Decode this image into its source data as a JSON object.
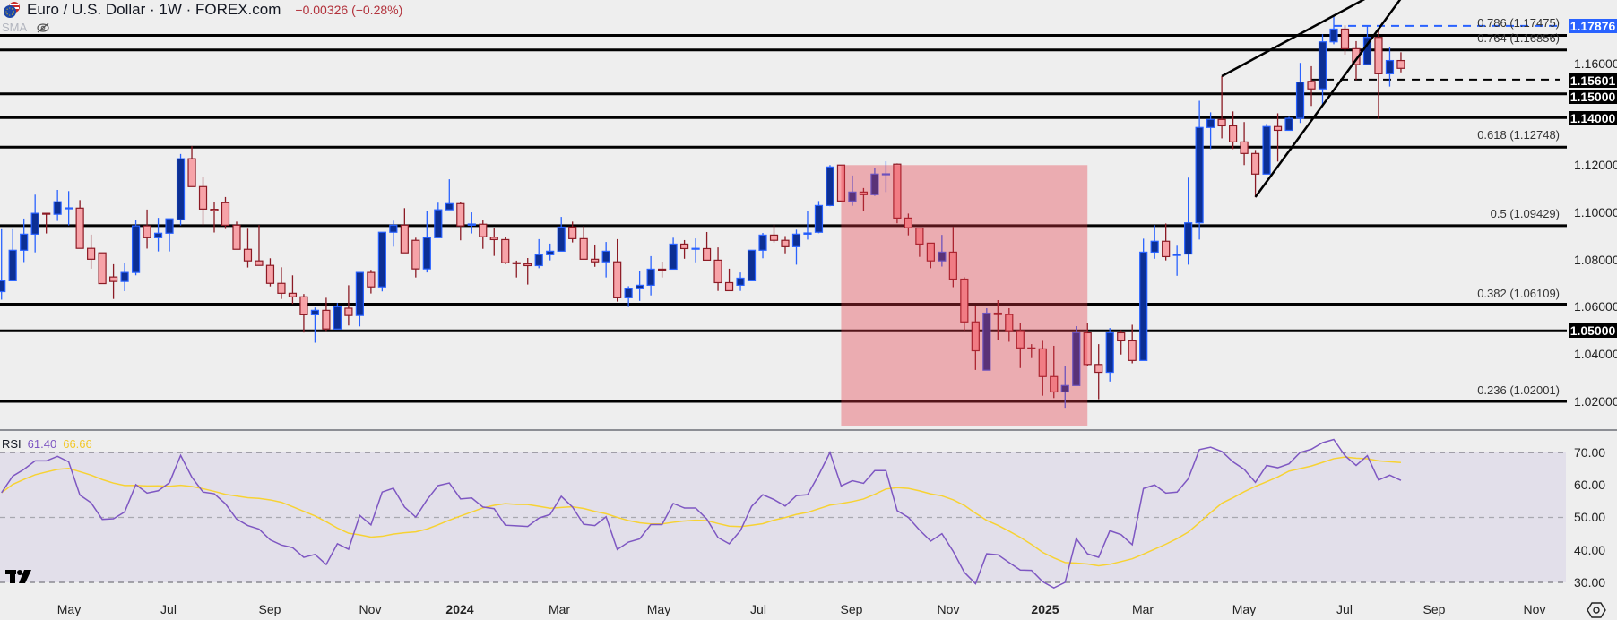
{
  "header": {
    "title": "Euro / U.S. Dollar · 1W · FOREX.com",
    "change": "−0.00326 (−0.28%)",
    "indicator_label": "SMA",
    "flag_icon": "eu-us-flag-icon",
    "visibility_icon": "eye-slash-icon"
  },
  "rsi_header": {
    "label": "RSI",
    "value": "61.40",
    "ma_value": "66.66"
  },
  "colors": {
    "bull_fill": "#0c2f94",
    "bull_border": "#2962ff",
    "bear_fill": "#f7a3a8",
    "bear_border": "#8b1a24",
    "rsi_line": "#7e57c2",
    "rsi_ma": "#f7d233",
    "zone_fill": "rgba(230,55,70,0.36)",
    "accent_blue": "#2962ff"
  },
  "price_axis": {
    "ticks": [
      "1.16000",
      "1.12000",
      "1.10000",
      "1.08000",
      "1.06000",
      "1.04000",
      "1.02000"
    ],
    "badges": {
      "current_high": "1.17876",
      "dashed": "1.15601",
      "l1150": "1.15000",
      "l1140": "1.14000",
      "l1050": "1.05000"
    }
  },
  "fib_labels": {
    "f786": "0.786 (1.17475)",
    "f764": "0.764 (1.16856)",
    "f618": "0.618 (1.12748)",
    "f500": "0.5 (1.09429)",
    "f382": "0.382 (1.06109)",
    "f236": "0.236 (1.02001)"
  },
  "time_axis": [
    "May",
    "Jul",
    "Sep",
    "Nov",
    "2024",
    "Mar",
    "May",
    "Jul",
    "Sep",
    "Nov",
    "2025",
    "Mar",
    "May",
    "Jul",
    "Sep",
    "Nov"
  ],
  "rsi_axis": [
    "70.00",
    "60.00",
    "50.00",
    "40.00",
    "30.00"
  ],
  "chart_data": {
    "type": "candlestick",
    "title": "Euro / U.S. Dollar · 1W · FOREX.com",
    "interval": "1W",
    "ylim": [
      1.005,
      1.19
    ],
    "candles_ohlc": [
      [
        1.0664,
        1.0928,
        1.063,
        1.071
      ],
      [
        1.071,
        1.0928,
        1.071,
        1.0839
      ],
      [
        1.0839,
        1.0973,
        1.0789,
        1.0907
      ],
      [
        1.0907,
        1.1074,
        1.083,
        1.0995
      ],
      [
        1.0995,
        1.0995,
        1.091,
        1.0994
      ],
      [
        1.0991,
        1.1094,
        1.0963,
        1.1044
      ],
      [
        1.1017,
        1.1089,
        1.0944,
        1.1018
      ],
      [
        1.1017,
        1.1051,
        1.0847,
        1.0847
      ],
      [
        1.0847,
        1.0905,
        1.0761,
        1.0801
      ],
      [
        1.0828,
        1.0828,
        1.0698,
        1.0698
      ],
      [
        1.0726,
        1.078,
        1.0633,
        1.0707
      ],
      [
        1.0707,
        1.0786,
        1.0666,
        1.0745
      ],
      [
        1.0745,
        1.0968,
        1.0733,
        1.0942
      ],
      [
        1.0942,
        1.1011,
        1.0846,
        1.0892
      ],
      [
        1.0892,
        1.0976,
        1.0834,
        1.0911
      ],
      [
        1.0911,
        1.0972,
        1.0834,
        1.0972
      ],
      [
        1.0968,
        1.1246,
        1.0944,
        1.1226
      ],
      [
        1.1226,
        1.1279,
        1.1108,
        1.1108
      ],
      [
        1.1108,
        1.115,
        1.0944,
        1.1013
      ],
      [
        1.1012,
        1.1044,
        1.0914,
        1.1006
      ],
      [
        1.104,
        1.1064,
        1.0929,
        1.0945
      ],
      [
        1.0945,
        1.096,
        1.0843,
        1.0843
      ],
      [
        1.0843,
        1.093,
        1.0766,
        1.0794
      ],
      [
        1.0794,
        1.0945,
        1.0775,
        1.0775
      ],
      [
        1.0775,
        1.0805,
        1.0686,
        1.0699
      ],
      [
        1.0699,
        1.0767,
        1.0633,
        1.0657
      ],
      [
        1.0657,
        1.0733,
        1.0612,
        1.0642
      ],
      [
        1.0642,
        1.0654,
        1.0491,
        1.0566
      ],
      [
        1.0566,
        1.0597,
        1.0448,
        1.0585
      ],
      [
        1.0585,
        1.0638,
        1.0498,
        1.0506
      ],
      [
        1.0506,
        1.0616,
        1.0506,
        1.06
      ],
      [
        1.0594,
        1.0691,
        1.0521,
        1.0563
      ],
      [
        1.0563,
        1.0745,
        1.0517,
        1.0745
      ],
      [
        1.0745,
        1.0756,
        1.0656,
        1.0684
      ],
      [
        1.0684,
        1.0915,
        1.0665,
        1.0915
      ],
      [
        1.0915,
        1.0964,
        1.0854,
        1.0945
      ],
      [
        1.0945,
        1.1017,
        1.0828,
        1.0828
      ],
      [
        1.0881,
        1.0892,
        1.0724,
        1.076
      ],
      [
        1.076,
        1.1006,
        1.0745,
        1.0892
      ],
      [
        1.0892,
        1.104,
        1.0892,
        1.101
      ],
      [
        1.101,
        1.1139,
        1.101,
        1.1036
      ],
      [
        1.1036,
        1.1044,
        1.0881,
        1.0942
      ],
      [
        1.0945,
        1.0999,
        1.091,
        1.095
      ],
      [
        1.0949,
        1.0965,
        1.0845,
        1.0896
      ],
      [
        1.0894,
        1.0931,
        1.0815,
        1.0884
      ],
      [
        1.0884,
        1.0897,
        1.0781,
        1.0786
      ],
      [
        1.0786,
        1.0795,
        1.0724,
        1.0785
      ],
      [
        1.0782,
        1.0806,
        1.0694,
        1.0774
      ],
      [
        1.0774,
        1.0886,
        1.0763,
        1.082
      ],
      [
        1.082,
        1.0867,
        1.0796,
        1.0835
      ],
      [
        1.0835,
        1.098,
        1.0835,
        1.0937
      ],
      [
        1.0937,
        1.096,
        1.0872,
        1.0888
      ],
      [
        1.0888,
        1.0941,
        1.0801,
        1.0801
      ],
      [
        1.0801,
        1.0863,
        1.0769,
        1.079
      ],
      [
        1.079,
        1.0874,
        1.0724,
        1.0835
      ],
      [
        1.079,
        1.0886,
        1.0622,
        1.0638
      ],
      [
        1.0638,
        1.0687,
        1.0599,
        1.0676
      ],
      [
        1.0676,
        1.0753,
        1.0625,
        1.0691
      ],
      [
        1.0691,
        1.0814,
        1.0648,
        1.0759
      ],
      [
        1.0759,
        1.0791,
        1.0724,
        1.0758
      ],
      [
        1.0759,
        1.0892,
        1.0759,
        1.0865
      ],
      [
        1.0865,
        1.0882,
        1.0803,
        1.0846
      ],
      [
        1.0846,
        1.0889,
        1.0788,
        1.0847
      ],
      [
        1.0846,
        1.0916,
        1.0797,
        1.0797
      ],
      [
        1.0797,
        1.0851,
        1.0667,
        1.0702
      ],
      [
        1.0702,
        1.0761,
        1.0668,
        1.0668
      ],
      [
        1.0691,
        1.0745,
        1.0667,
        1.0721
      ],
      [
        1.071,
        1.0839,
        1.071,
        1.0839
      ],
      [
        1.0839,
        1.0912,
        1.0805,
        1.0903
      ],
      [
        1.0903,
        1.0947,
        1.0872,
        1.0881
      ],
      [
        1.0881,
        1.0899,
        1.0826,
        1.0854
      ],
      [
        1.0854,
        1.0926,
        1.0778,
        1.0907
      ],
      [
        1.0907,
        1.1006,
        1.0884,
        1.0912
      ],
      [
        1.0915,
        1.1047,
        1.0911,
        1.1028
      ],
      [
        1.1028,
        1.1199,
        1.1025,
        1.1191
      ],
      [
        1.1199,
        1.1199,
        1.1047,
        1.1047
      ],
      [
        1.1047,
        1.1155,
        1.1027,
        1.1085
      ],
      [
        1.1085,
        1.1102,
        1.1004,
        1.1074
      ],
      [
        1.1074,
        1.1187,
        1.1069,
        1.1161
      ],
      [
        1.1161,
        1.1215,
        1.1085,
        1.1162
      ],
      [
        1.1203,
        1.1206,
        1.0953,
        1.0975
      ],
      [
        1.0975,
        1.0994,
        1.0902,
        1.0934
      ],
      [
        1.0933,
        1.0933,
        1.0811,
        1.0865
      ],
      [
        1.0869,
        1.0869,
        1.0763,
        1.0794
      ],
      [
        1.0794,
        1.0904,
        1.077,
        1.0831
      ],
      [
        1.0831,
        1.0937,
        1.0683,
        1.0717
      ],
      [
        1.0717,
        1.0725,
        1.05,
        1.0536
      ],
      [
        1.0536,
        1.0605,
        1.0333,
        1.0414
      ],
      [
        1.0332,
        1.0594,
        1.0332,
        1.0573
      ],
      [
        1.0573,
        1.0628,
        1.046,
        1.0567
      ],
      [
        1.0567,
        1.0594,
        1.0452,
        1.0499
      ],
      [
        1.0499,
        1.0533,
        1.0341,
        1.0426
      ],
      [
        1.0426,
        1.0442,
        1.0383,
        1.0425
      ],
      [
        1.0422,
        1.0456,
        1.0224,
        1.0305
      ],
      [
        1.0305,
        1.0435,
        1.0214,
        1.024
      ],
      [
        1.024,
        1.035,
        1.0173,
        1.0267
      ],
      [
        1.0267,
        1.0518,
        1.0267,
        1.049
      ],
      [
        1.049,
        1.0533,
        1.0349,
        1.0356
      ],
      [
        1.0356,
        1.0442,
        1.0209,
        1.0323
      ],
      [
        1.0323,
        1.051,
        1.0284,
        1.049
      ],
      [
        1.049,
        1.0501,
        1.0398,
        1.0456
      ],
      [
        1.0456,
        1.0524,
        1.0361,
        1.0373
      ],
      [
        1.0373,
        1.0888,
        1.0373,
        1.0831
      ],
      [
        1.0831,
        1.0945,
        1.0803,
        1.0877
      ],
      [
        1.0877,
        1.0952,
        1.0796,
        1.0812
      ],
      [
        1.0817,
        1.0858,
        1.0731,
        1.0822
      ],
      [
        1.0823,
        1.1146,
        1.0778,
        1.0955
      ],
      [
        1.0955,
        1.1471,
        1.0884,
        1.1358
      ],
      [
        1.1358,
        1.1422,
        1.1267,
        1.1392
      ],
      [
        1.1392,
        1.1575,
        1.1312,
        1.1365
      ],
      [
        1.1365,
        1.1426,
        1.1267,
        1.1297
      ],
      [
        1.1297,
        1.1381,
        1.1199,
        1.1248
      ],
      [
        1.1248,
        1.1263,
        1.1063,
        1.1161
      ],
      [
        1.1161,
        1.1373,
        1.1161,
        1.1362
      ],
      [
        1.1362,
        1.1418,
        1.1214,
        1.1346
      ],
      [
        1.1346,
        1.1403,
        1.1346,
        1.1397
      ],
      [
        1.1397,
        1.1631,
        1.1377,
        1.155
      ],
      [
        1.1553,
        1.1617,
        1.1449,
        1.1521
      ],
      [
        1.1521,
        1.1752,
        1.1455,
        1.172
      ],
      [
        1.172,
        1.1834,
        1.171,
        1.1774
      ],
      [
        1.1774,
        1.179,
        1.1666,
        1.1691
      ],
      [
        1.1691,
        1.1723,
        1.1559,
        1.1624
      ],
      [
        1.1624,
        1.179,
        1.1624,
        1.1739
      ],
      [
        1.1739,
        1.1777,
        1.1394,
        1.1585
      ],
      [
        1.1585,
        1.1699,
        1.1531,
        1.1641
      ],
      [
        1.1641,
        1.1676,
        1.1591,
        1.1608
      ]
    ],
    "levels": [
      {
        "price": 1.17475,
        "style": "solid"
      },
      {
        "price": 1.16856,
        "style": "solid"
      },
      {
        "price": 1.15,
        "style": "solid"
      },
      {
        "price": 1.14,
        "style": "solid"
      },
      {
        "price": 1.12748,
        "style": "solid"
      },
      {
        "price": 1.09429,
        "style": "solid"
      },
      {
        "price": 1.06109,
        "style": "solid"
      },
      {
        "price": 1.05,
        "style": "thin"
      },
      {
        "price": 1.02001,
        "style": "solid"
      }
    ],
    "dashed_levels": [
      {
        "price": 1.17876,
        "from_index": 119,
        "color": "#2962ff"
      },
      {
        "price": 1.15601,
        "from_index": 117,
        "color": "#000000"
      }
    ],
    "trendlines": [
      {
        "from": {
          "index": 109,
          "price": 1.1575
        },
        "to": {
          "index": 121.6,
          "price": 1.1897
        }
      },
      {
        "from": {
          "index": 112,
          "price": 1.1064
        },
        "to": {
          "index": 124.9,
          "price": 1.1897
        }
      }
    ],
    "zone": {
      "from_index": 75,
      "to_index": 97,
      "price_top": 1.1199,
      "price_bottom": 1.0094
    },
    "rsi": {
      "levels": [
        70,
        50,
        30
      ],
      "ma_length": 14,
      "values": [
        57.6,
        62.7,
        64.8,
        67.4,
        67.4,
        68.8,
        67.1,
        56.9,
        54.5,
        49.4,
        49.6,
        51.7,
        60.1,
        57.5,
        58.2,
        60.7,
        69.1,
        62.4,
        57.8,
        57.3,
        54.2,
        49.5,
        47.5,
        46.4,
        43.1,
        41.5,
        40.7,
        37.7,
        38.6,
        35.5,
        41.9,
        40.2,
        50.6,
        47.7,
        57.8,
        59.0,
        53.2,
        50.1,
        55.4,
        59.8,
        60.6,
        55.7,
        56.0,
        53.2,
        52.7,
        47.6,
        47.4,
        47.2,
        49.8,
        50.9,
        56.5,
        53.2,
        47.9,
        47.5,
        50.2,
        40.1,
        42.4,
        43.4,
        47.8,
        47.8,
        54.3,
        52.9,
        52.9,
        49.5,
        43.8,
        41.9,
        45.9,
        53.4,
        57.0,
        55.5,
        53.5,
        56.7,
        57.0,
        63.1,
        70.0,
        59.7,
        61.3,
        60.5,
        64.4,
        64.4,
        52.1,
        50.0,
        46.1,
        42.7,
        45.0,
        39.6,
        33.1,
        29.6,
        38.8,
        38.5,
        36.1,
        33.8,
        33.7,
        30.2,
        28.3,
        30.0,
        43.5,
        38.8,
        37.7,
        45.9,
        44.7,
        41.6,
        58.9,
        60.0,
        57.5,
        57.8,
        61.9,
        70.9,
        71.6,
        70.3,
        67.1,
        64.8,
        60.8,
        66.0,
        65.3,
        66.5,
        70.0,
        71.0,
        73.0,
        74.0,
        69.0,
        66.0,
        69.0,
        61.5,
        63.0,
        61.4
      ]
    }
  }
}
